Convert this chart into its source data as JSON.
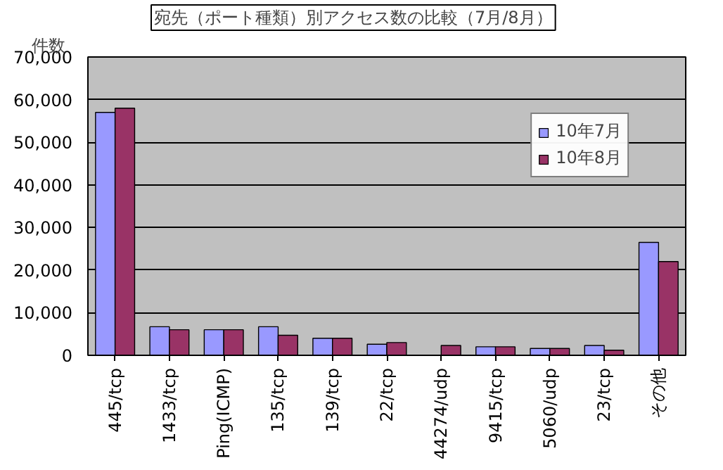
{
  "chart_data": {
    "type": "bar",
    "title": "宛先（ポート種類）別アクセス数の比較（7月/8月）",
    "ylabel": "件数",
    "categories": [
      "445/tcp",
      "1433/tcp",
      "Ping(ICMP)",
      "135/tcp",
      "139/tcp",
      "22/tcp",
      "44274/udp",
      "9415/tcp",
      "5060/udp",
      "23/tcp",
      "その他"
    ],
    "series": [
      {
        "name": "10年7月",
        "color": "#9999ff",
        "values": [
          57000,
          6700,
          6000,
          6700,
          4000,
          2600,
          null,
          2000,
          1600,
          2300,
          26500
        ]
      },
      {
        "name": "10年8月",
        "color": "#993366",
        "values": [
          58000,
          6000,
          6000,
          4700,
          4000,
          3000,
          2300,
          2000,
          1600,
          1200,
          22000
        ]
      }
    ],
    "ylim": [
      0,
      70000
    ],
    "yticks": [
      {
        "value": 0,
        "label": "0"
      },
      {
        "value": 10000,
        "label": "10,000"
      },
      {
        "value": 20000,
        "label": "20,000"
      },
      {
        "value": 30000,
        "label": "30,000"
      },
      {
        "value": 40000,
        "label": "40,000"
      },
      {
        "value": 50000,
        "label": "50,000"
      },
      {
        "value": 60000,
        "label": "60,000"
      },
      {
        "value": 70000,
        "label": "70,000"
      }
    ],
    "grid": "y",
    "legend": "top right"
  }
}
